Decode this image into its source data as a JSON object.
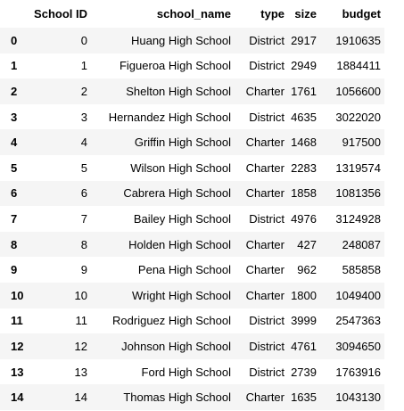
{
  "table": {
    "columns": [
      "",
      "School ID",
      "school_name",
      "type",
      "size",
      "budget"
    ],
    "rows": [
      {
        "index": "0",
        "school_id": "0",
        "school_name": "Huang High School",
        "type": "District",
        "size": "2917",
        "budget": "1910635"
      },
      {
        "index": "1",
        "school_id": "1",
        "school_name": "Figueroa High School",
        "type": "District",
        "size": "2949",
        "budget": "1884411"
      },
      {
        "index": "2",
        "school_id": "2",
        "school_name": "Shelton High School",
        "type": "Charter",
        "size": "1761",
        "budget": "1056600"
      },
      {
        "index": "3",
        "school_id": "3",
        "school_name": "Hernandez High School",
        "type": "District",
        "size": "4635",
        "budget": "3022020"
      },
      {
        "index": "4",
        "school_id": "4",
        "school_name": "Griffin High School",
        "type": "Charter",
        "size": "1468",
        "budget": "917500"
      },
      {
        "index": "5",
        "school_id": "5",
        "school_name": "Wilson High School",
        "type": "Charter",
        "size": "2283",
        "budget": "1319574"
      },
      {
        "index": "6",
        "school_id": "6",
        "school_name": "Cabrera High School",
        "type": "Charter",
        "size": "1858",
        "budget": "1081356"
      },
      {
        "index": "7",
        "school_id": "7",
        "school_name": "Bailey High School",
        "type": "District",
        "size": "4976",
        "budget": "3124928"
      },
      {
        "index": "8",
        "school_id": "8",
        "school_name": "Holden High School",
        "type": "Charter",
        "size": "427",
        "budget": "248087"
      },
      {
        "index": "9",
        "school_id": "9",
        "school_name": "Pena High School",
        "type": "Charter",
        "size": "962",
        "budget": "585858"
      },
      {
        "index": "10",
        "school_id": "10",
        "school_name": "Wright High School",
        "type": "Charter",
        "size": "1800",
        "budget": "1049400"
      },
      {
        "index": "11",
        "school_id": "11",
        "school_name": "Rodriguez High School",
        "type": "District",
        "size": "3999",
        "budget": "2547363"
      },
      {
        "index": "12",
        "school_id": "12",
        "school_name": "Johnson High School",
        "type": "District",
        "size": "4761",
        "budget": "3094650"
      },
      {
        "index": "13",
        "school_id": "13",
        "school_name": "Ford High School",
        "type": "District",
        "size": "2739",
        "budget": "1763916"
      },
      {
        "index": "14",
        "school_id": "14",
        "school_name": "Thomas High School",
        "type": "Charter",
        "size": "1635",
        "budget": "1043130"
      }
    ]
  },
  "colors": {
    "stripe": "#f5f5f5",
    "background": "#ffffff",
    "text": "#000000"
  }
}
